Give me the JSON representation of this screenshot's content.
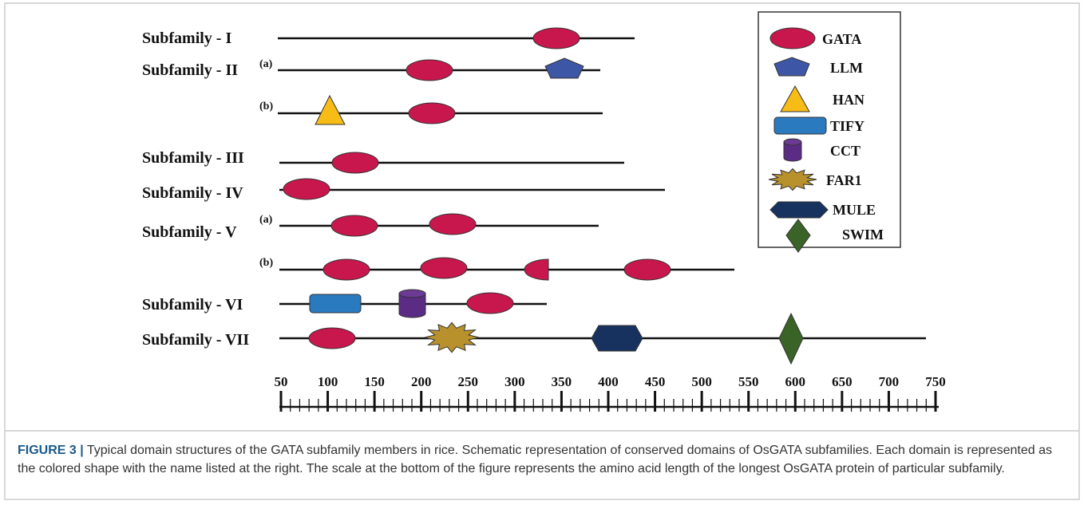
{
  "figure": {
    "rows": {
      "labels": [
        "Subfamily - I",
        "Subfamily - II",
        "Subfamily - III",
        "Subfamily - IV",
        "Subfamily - V",
        "Subfamily - VI",
        "Subfamily - VII"
      ],
      "variants": [
        "(a)",
        "(b)",
        "(a)",
        "(b)"
      ]
    },
    "legend": [
      "GATA",
      "LLM",
      "HAN",
      "TIFY",
      "CCT",
      "FAR1",
      "MULE",
      "SWIM"
    ],
    "scale": {
      "labels": [
        50,
        100,
        150,
        200,
        250,
        300,
        350,
        400,
        450,
        500,
        550,
        600,
        650,
        700,
        750
      ]
    },
    "caption": {
      "label": "FIGURE 3 |",
      "text": "Typical domain structures of the GATA subfamily members in rice. Schematic representation of conserved domains of OsGATA subfamilies. Each domain is represented as the colored shape with the name listed at the right. The scale at the bottom of the figure represents the amino acid length of the longest OsGATA protein of particular subfamily."
    }
  }
}
